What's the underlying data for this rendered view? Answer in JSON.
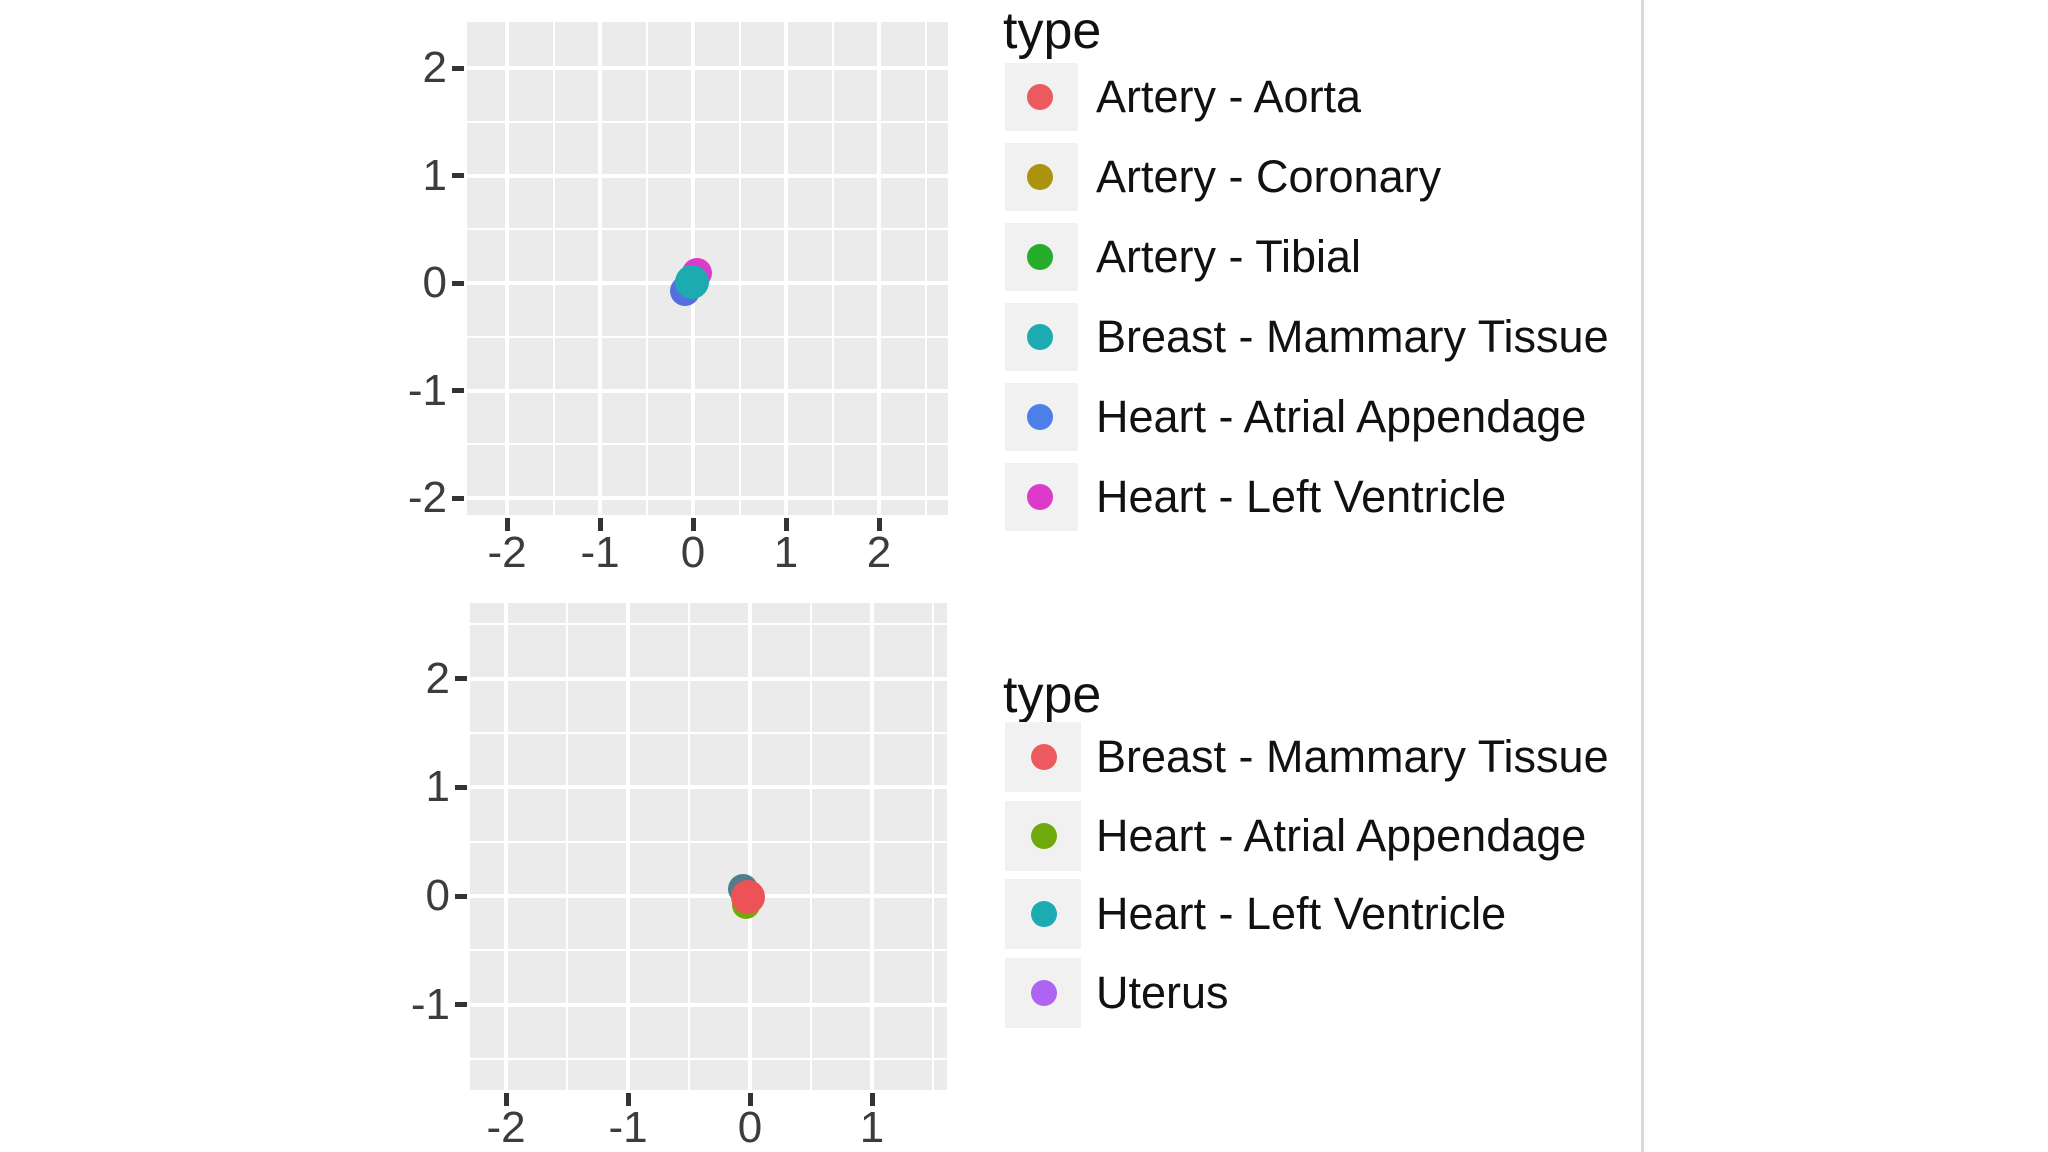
{
  "page": {
    "background": "#FFFFFF",
    "divider_color": "#D9D9D9",
    "panel_background": "#EBEBEB",
    "grid_color": "#FFFFFF",
    "axis_text_color": "#3C3C3C",
    "legend_key_background": "#F1F1F1"
  },
  "chart_data": [
    {
      "type": "scatter",
      "title": "",
      "legend_title": "type",
      "legend_position": "right",
      "grid": true,
      "xlabel": "",
      "ylabel": "",
      "x_ticks": [
        -2,
        -1,
        0,
        1,
        2
      ],
      "y_ticks": [
        2,
        1,
        0,
        -1,
        -2
      ],
      "xlim": [
        -2.4,
        2.7
      ],
      "ylim": [
        -2.2,
        2.4
      ],
      "legend": [
        {
          "label": "Artery - Aorta",
          "color": "#EC5A60"
        },
        {
          "label": "Artery - Coronary",
          "color": "#AB930D"
        },
        {
          "label": "Artery - Tibial",
          "color": "#25AD29"
        },
        {
          "label": "Breast - Mammary Tissue",
          "color": "#1BABB0"
        },
        {
          "label": "Heart - Atrial Appendage",
          "color": "#4D7FE8"
        },
        {
          "label": "Heart - Left Ventricle",
          "color": "#DC3BC9"
        }
      ],
      "series": [
        {
          "name": "Heart - Left Ventricle",
          "color": "#DC3BC9",
          "points": [
            {
              "x": 0.04,
              "y": 0.09
            }
          ],
          "r": 15
        },
        {
          "name": "Heart - Atrial Appendage",
          "color": "#5570DE",
          "points": [
            {
              "x": -0.09,
              "y": -0.07
            }
          ],
          "r": 15
        },
        {
          "name": "Breast - Mammary Tissue",
          "color": "#1BABB0",
          "points": [
            {
              "x": -0.01,
              "y": 0.01
            }
          ],
          "r": 17
        }
      ]
    },
    {
      "type": "scatter",
      "title": "",
      "legend_title": "type",
      "legend_position": "right",
      "grid": true,
      "xlabel": "",
      "ylabel": "",
      "x_ticks": [
        -2,
        -1,
        0,
        1
      ],
      "y_ticks": [
        2,
        1,
        0,
        -1
      ],
      "xlim": [
        -2.3,
        1.6
      ],
      "ylim": [
        -1.8,
        2.7
      ],
      "legend": [
        {
          "label": "Breast - Mammary Tissue",
          "color": "#EC5A60"
        },
        {
          "label": "Heart - Atrial Appendage",
          "color": "#6FA90B"
        },
        {
          "label": "Heart - Left Ventricle",
          "color": "#1BABB0"
        },
        {
          "label": "Uterus",
          "color": "#AE63F2"
        }
      ],
      "series": [
        {
          "name": "Heart - Left Ventricle",
          "color": "#517E8C",
          "points": [
            {
              "x": -0.06,
              "y": 0.06
            }
          ],
          "r": 15
        },
        {
          "name": "Heart - Atrial Appendage",
          "color": "#6FA90B",
          "points": [
            {
              "x": -0.03,
              "y": -0.08
            }
          ],
          "r": 14
        },
        {
          "name": "Uterus",
          "color": "#AE63F2",
          "points": [
            {
              "x": 0.0,
              "y": -0.02
            }
          ],
          "r": 13
        },
        {
          "name": "Breast - Mammary Tissue",
          "color": "#ED5356",
          "points": [
            {
              "x": -0.02,
              "y": -0.01
            }
          ],
          "r": 17
        }
      ]
    }
  ]
}
